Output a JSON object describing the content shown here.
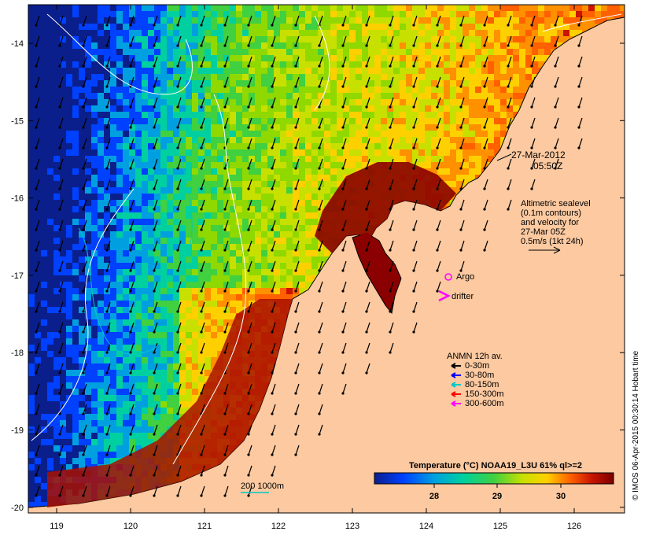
{
  "map": {
    "lon_ticks": [
      "119",
      "120",
      "121",
      "122",
      "123",
      "124",
      "125",
      "126"
    ],
    "lat_ticks": [
      "-14",
      "-15",
      "-16",
      "-17",
      "-18",
      "-19",
      "-20"
    ],
    "date_line1": "27-Mar-2012",
    "date_line2": "05:50Z",
    "altimetry_lines": [
      "Altimetric sealevel",
      "(0.1m contours)",
      "and velocity for",
      "27-Mar 05Z",
      "0.5m/s (1kt 24h)"
    ],
    "argo_label": "Argo",
    "drifter_label": "drifter",
    "anmn_title": "ANMN 12h av.",
    "anmn_items": [
      {
        "label": "0-30m",
        "color": "#000000"
      },
      {
        "label": "30-80m",
        "color": "#0000ff"
      },
      {
        "label": "80-150m",
        "color": "#00c8c8"
      },
      {
        "label": "150-300m",
        "color": "#ff0000"
      },
      {
        "label": "300-600m",
        "color": "#ff00ff"
      }
    ],
    "scale_label": "200 1000m",
    "colorbar_title": "Temperature (°C) NOAA19_L3U 61% ql>=2",
    "colorbar_ticks": [
      "28",
      "29",
      "30"
    ],
    "credit": "© IMOS 06-Apr-2015 00:30:14 Hobart time",
    "colors": {
      "land": "#fcc9a0",
      "argo": "#ff00ff",
      "drifter": "#ff00ff",
      "warm": "#8b0000",
      "cool": "#0a1f8c"
    }
  }
}
